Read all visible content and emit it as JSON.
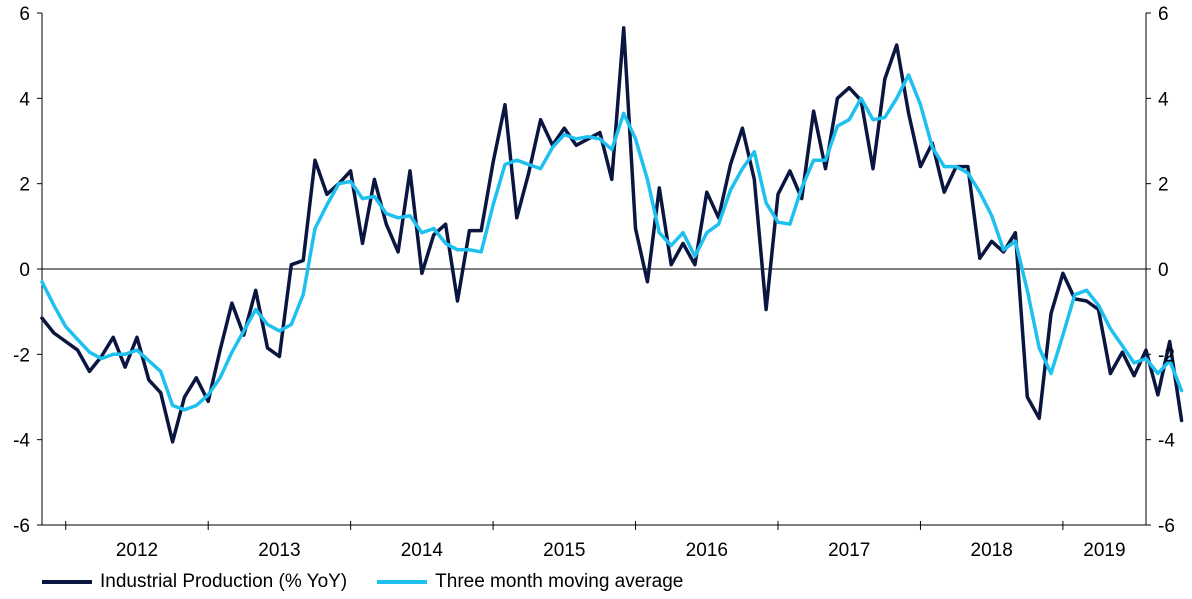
{
  "chart_data": {
    "type": "line",
    "title": "",
    "xlabel": "",
    "ylabel": "",
    "ylim": [
      -6,
      6
    ],
    "yticks": [
      -6,
      -4,
      -2,
      0,
      2,
      4,
      6
    ],
    "yticks_right": [
      -6,
      -4,
      -2,
      0,
      2,
      4,
      6
    ],
    "year_labels": [
      "2012",
      "2013",
      "2014",
      "2015",
      "2016",
      "2017",
      "2018",
      "2019"
    ],
    "x_start": "2011-11",
    "x_end": "2019-08",
    "grid": false,
    "zero_line": true,
    "legend_position": "bottom",
    "series": [
      {
        "name": "Industrial Production (% YoY)",
        "color": "#0b1640",
        "values": [
          -1.15,
          -1.5,
          -1.7,
          -1.9,
          -2.4,
          -2.05,
          -1.6,
          -2.3,
          -1.6,
          -2.6,
          -2.9,
          -4.05,
          -3.0,
          -2.55,
          -3.1,
          -1.9,
          -0.8,
          -1.55,
          -0.5,
          -1.85,
          -2.05,
          0.1,
          0.2,
          2.55,
          1.75,
          2.0,
          2.3,
          0.6,
          2.1,
          1.05,
          0.4,
          2.3,
          -0.1,
          0.8,
          1.05,
          -0.75,
          0.9,
          0.9,
          2.5,
          3.85,
          1.2,
          2.25,
          3.5,
          2.9,
          3.3,
          2.9,
          3.05,
          3.2,
          2.1,
          5.65,
          0.95,
          -0.3,
          1.9,
          0.1,
          0.6,
          0.1,
          1.8,
          1.2,
          2.45,
          3.3,
          2.1,
          -0.95,
          1.75,
          2.3,
          1.65,
          3.7,
          2.35,
          4.0,
          4.25,
          3.95,
          2.35,
          4.45,
          5.25,
          3.65,
          2.4,
          2.95,
          1.8,
          2.4,
          2.4,
          0.25,
          0.65,
          0.4,
          0.85,
          -3.0,
          -3.5,
          -1.05,
          -0.1,
          -0.7,
          -0.75,
          -0.95,
          -2.45,
          -1.95,
          -2.5,
          -1.9,
          -2.95,
          -1.7,
          -3.55
        ]
      },
      {
        "name": "Three month moving average",
        "color": "#1ec0f0",
        "values": [
          -0.3,
          -0.85,
          -1.35,
          -1.65,
          -1.95,
          -2.1,
          -2.0,
          -2.0,
          -1.9,
          -2.15,
          -2.4,
          -3.2,
          -3.3,
          -3.2,
          -2.95,
          -2.55,
          -1.95,
          -1.45,
          -0.95,
          -1.3,
          -1.45,
          -1.3,
          -0.6,
          0.95,
          1.5,
          2.0,
          2.05,
          1.65,
          1.7,
          1.3,
          1.2,
          1.25,
          0.85,
          0.95,
          0.6,
          0.45,
          0.45,
          0.4,
          1.5,
          2.45,
          2.55,
          2.45,
          2.35,
          2.85,
          3.15,
          3.05,
          3.1,
          3.05,
          2.8,
          3.65,
          3.05,
          2.1,
          0.85,
          0.55,
          0.85,
          0.3,
          0.85,
          1.05,
          1.85,
          2.35,
          2.75,
          1.55,
          1.1,
          1.05,
          1.9,
          2.55,
          2.55,
          3.35,
          3.5,
          4.0,
          3.5,
          3.55,
          4.0,
          4.55,
          3.85,
          2.85,
          2.4,
          2.4,
          2.25,
          1.8,
          1.25,
          0.45,
          0.65,
          -0.5,
          -1.85,
          -2.45,
          -1.55,
          -0.6,
          -0.5,
          -0.85,
          -1.4,
          -1.8,
          -2.2,
          -2.1,
          -2.45,
          -2.15,
          -2.85
        ]
      }
    ]
  }
}
